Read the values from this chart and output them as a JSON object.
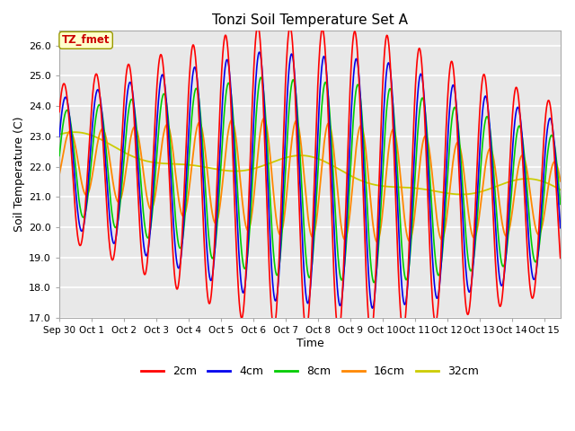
{
  "title": "Tonzi Soil Temperature Set A",
  "xlabel": "Time",
  "ylabel": "Soil Temperature (C)",
  "ylim": [
    17.0,
    26.5
  ],
  "yticks": [
    17.0,
    18.0,
    19.0,
    20.0,
    21.0,
    22.0,
    23.0,
    24.0,
    25.0,
    26.0
  ],
  "xtick_labels": [
    "Sep 30",
    "Oct 1",
    "Oct 2",
    "Oct 3",
    "Oct 4",
    "Oct 5",
    "Oct 6",
    "Oct 7",
    "Oct 8",
    "Oct 9",
    "Oct 10",
    "Oct 11",
    "Oct 12",
    "Oct 13",
    "Oct 14",
    "Oct 15"
  ],
  "annotation_text": "TZ_fmet",
  "annotation_color": "#cc0000",
  "annotation_bg": "#ffffcc",
  "series_colors": [
    "#ff0000",
    "#0000ee",
    "#00cc00",
    "#ff8800",
    "#cccc00"
  ],
  "series_labels": [
    "2cm",
    "4cm",
    "8cm",
    "16cm",
    "32cm"
  ],
  "plot_bg_color": "#e8e8e8",
  "n_days": 15.5,
  "points_per_day": 96
}
